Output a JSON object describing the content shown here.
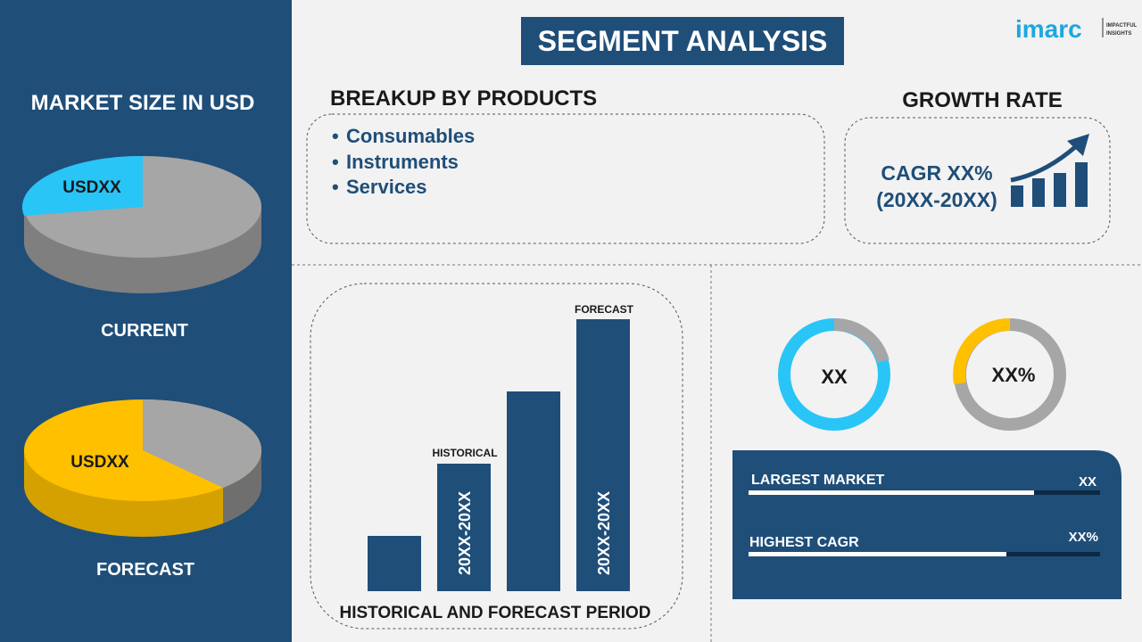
{
  "left_panel": {
    "title": "MARKET SIZE IN USD",
    "current": {
      "value_label": "USDXX",
      "label": "CURRENT"
    },
    "forecast": {
      "value_label": "USDXX",
      "label": "FORECAST"
    }
  },
  "header": {
    "title": "SEGMENT ANALYSIS",
    "logo": {
      "brand": "imarc",
      "tagline": [
        "IMPACTFUL",
        "INSIGHTS"
      ]
    }
  },
  "products": {
    "title": "BREAKUP BY PRODUCTS",
    "items": [
      "Consumables",
      "Instruments",
      "Services"
    ]
  },
  "growth_rate": {
    "title": "GROWTH RATE",
    "cagr": "CAGR XX%",
    "period": "(20XX-20XX)"
  },
  "period_chart": {
    "title": "HISTORICAL AND FORECAST PERIOD",
    "historical_label": "HISTORICAL",
    "forecast_label": "FORECAST",
    "historical_period": "20XX-20XX",
    "forecast_period": "20XX-20XX"
  },
  "donuts": [
    "XX",
    "XX%"
  ],
  "market_bars": [
    {
      "label": "LARGEST MARKET",
      "value": "XX"
    },
    {
      "label": "HIGHEST CAGR",
      "value": "XX%"
    }
  ]
}
